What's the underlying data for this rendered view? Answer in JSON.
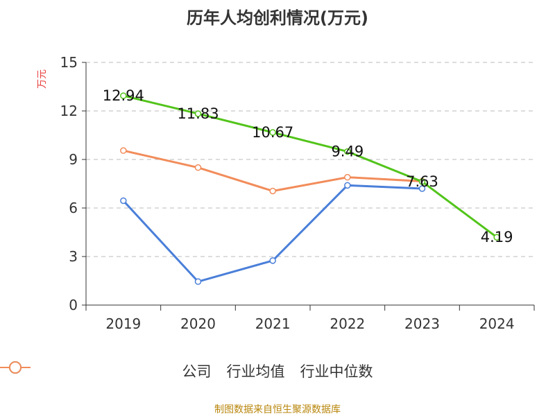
{
  "chart_data": {
    "type": "line",
    "title": "历年人均创利情况(万元)",
    "ylabel": "万元",
    "xlabel": "",
    "categories": [
      "2019",
      "2020",
      "2021",
      "2022",
      "2023",
      "2024"
    ],
    "yticks": [
      "0",
      "3",
      "6",
      "9",
      "12",
      "15"
    ],
    "ylim": [
      0,
      15
    ],
    "grid": true,
    "legend_position": "bottom",
    "series": [
      {
        "name": "公司",
        "color": "#52c41a",
        "values": [
          12.94,
          11.83,
          10.67,
          9.49,
          7.63,
          4.19
        ],
        "labels": [
          "12.94",
          "11.83",
          "10.67",
          "9.49",
          "7.63",
          "4.19"
        ]
      },
      {
        "name": "行业均值",
        "color": "#4a7fd9",
        "values": [
          6.45,
          1.45,
          2.75,
          7.4,
          7.2,
          null
        ]
      },
      {
        "name": "行业中位数",
        "color": "#f28c5a",
        "values": [
          9.55,
          8.5,
          7.05,
          7.9,
          7.65,
          null
        ]
      }
    ]
  },
  "source": "制图数据来自恒生聚源数据库"
}
